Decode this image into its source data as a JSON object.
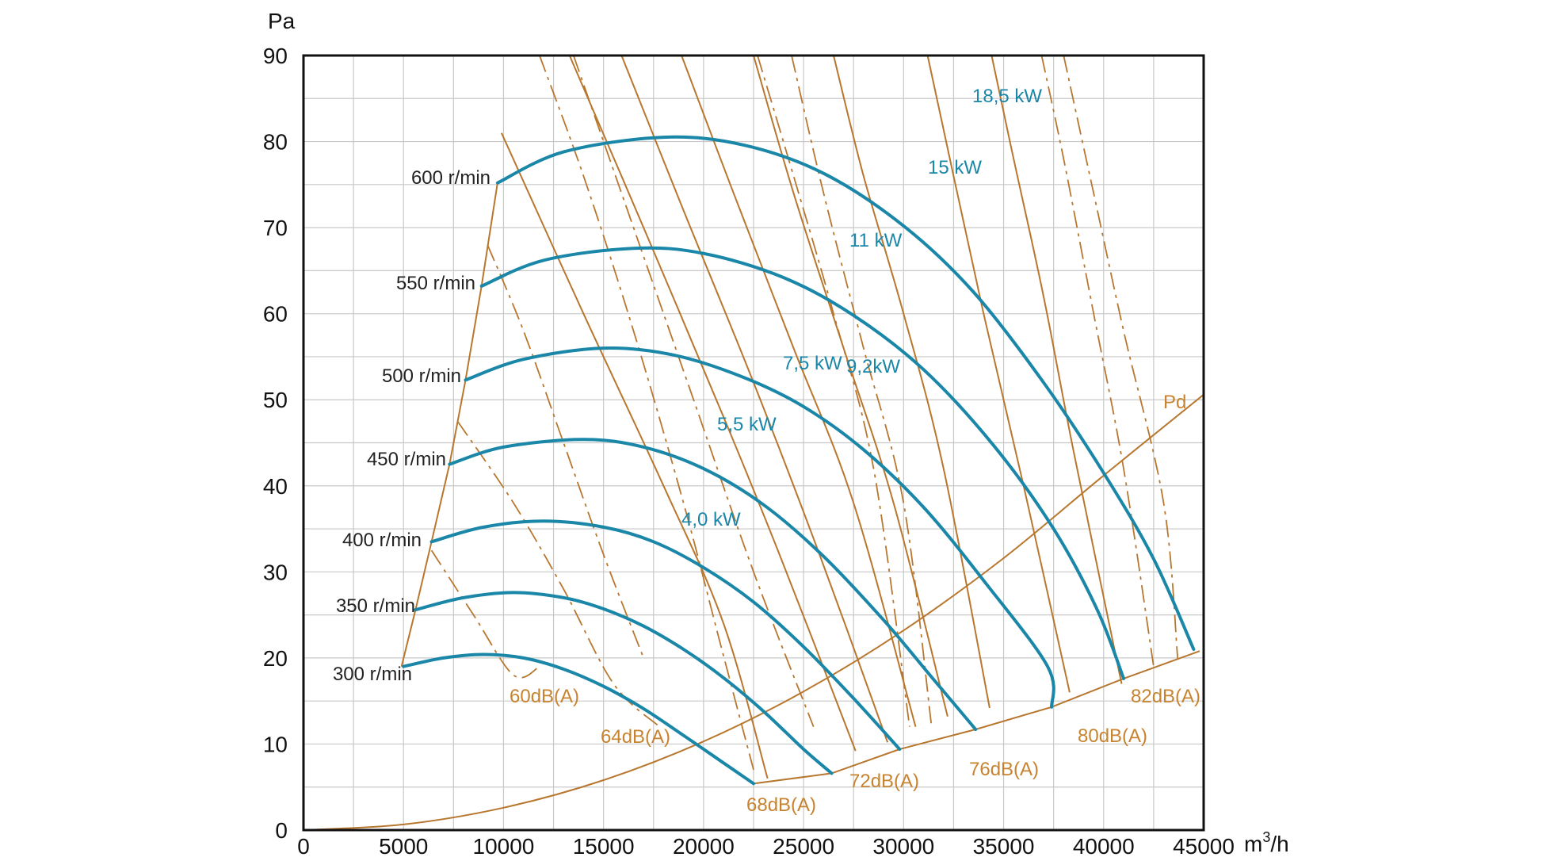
{
  "chart_data": {
    "type": "line",
    "title": "",
    "xlabel": "m³/h",
    "ylabel": "Pa",
    "xlim": [
      0,
      45000
    ],
    "ylim": [
      0,
      90
    ],
    "xticks": [
      0,
      5000,
      10000,
      15000,
      20000,
      25000,
      30000,
      35000,
      40000,
      45000
    ],
    "yticks": [
      0,
      10,
      20,
      30,
      40,
      50,
      60,
      70,
      80,
      90
    ],
    "grid": true,
    "colors": {
      "fan_curve": "#1a87a8",
      "power_line": "#b8772e",
      "noise_line": "#b8772e",
      "noise_label": "#c7832f",
      "grid": "#c8c8c8",
      "frame": "#111111"
    },
    "fan_curves": [
      {
        "name": "300 r/min",
        "points": [
          [
            5000,
            19
          ],
          [
            7000,
            20
          ],
          [
            9000,
            20.4
          ],
          [
            11000,
            20
          ],
          [
            13000,
            18.7
          ],
          [
            15000,
            16.7
          ],
          [
            17000,
            14.1
          ],
          [
            19000,
            11
          ],
          [
            21000,
            7.8
          ],
          [
            22500,
            5.4
          ]
        ]
      },
      {
        "name": "350 r/min",
        "points": [
          [
            5600,
            25.6
          ],
          [
            8000,
            27
          ],
          [
            10500,
            27.6
          ],
          [
            13000,
            27
          ],
          [
            15000,
            25.7
          ],
          [
            17000,
            23.7
          ],
          [
            19000,
            21
          ],
          [
            21000,
            17.7
          ],
          [
            23000,
            13.8
          ],
          [
            25000,
            9.4
          ],
          [
            26400,
            6.6
          ]
        ]
      },
      {
        "name": "400 r/min",
        "points": [
          [
            6400,
            33.5
          ],
          [
            9000,
            35.2
          ],
          [
            12000,
            35.9
          ],
          [
            15000,
            35.2
          ],
          [
            17500,
            33.5
          ],
          [
            20000,
            30.5
          ],
          [
            22500,
            26.5
          ],
          [
            25000,
            21.3
          ],
          [
            27500,
            15.3
          ],
          [
            29800,
            9.4
          ]
        ]
      },
      {
        "name": "450 r/min",
        "points": [
          [
            7300,
            42.5
          ],
          [
            10000,
            44.5
          ],
          [
            14000,
            45.4
          ],
          [
            17000,
            44.5
          ],
          [
            20000,
            42
          ],
          [
            23000,
            37.8
          ],
          [
            26000,
            31.8
          ],
          [
            29000,
            24.4
          ],
          [
            31500,
            17.5
          ],
          [
            33600,
            11.7
          ]
        ]
      },
      {
        "name": "500 r/min",
        "points": [
          [
            8100,
            52.3
          ],
          [
            11000,
            54.7
          ],
          [
            15000,
            56
          ],
          [
            18500,
            55.2
          ],
          [
            22000,
            52.6
          ],
          [
            25000,
            49.2
          ],
          [
            28000,
            44.2
          ],
          [
            31000,
            37.5
          ],
          [
            34000,
            29
          ],
          [
            37200,
            19
          ],
          [
            37400,
            14.3
          ]
        ]
      },
      {
        "name": "550 r/min",
        "points": [
          [
            8900,
            63.2
          ],
          [
            12000,
            66.2
          ],
          [
            16500,
            67.6
          ],
          [
            20000,
            67
          ],
          [
            24000,
            64.2
          ],
          [
            27500,
            59.8
          ],
          [
            31000,
            53.5
          ],
          [
            34500,
            44.7
          ],
          [
            37500,
            35
          ],
          [
            39700,
            25.5
          ],
          [
            41000,
            17.6
          ]
        ]
      },
      {
        "name": "600 r/min",
        "points": [
          [
            9700,
            75.2
          ],
          [
            13000,
            78.8
          ],
          [
            18000,
            80.5
          ],
          [
            22000,
            79.6
          ],
          [
            26000,
            76.3
          ],
          [
            30000,
            70.2
          ],
          [
            33500,
            62.5
          ],
          [
            37000,
            52
          ],
          [
            40000,
            41.5
          ],
          [
            42500,
            31.5
          ],
          [
            44500,
            21
          ]
        ]
      }
    ],
    "rpm_limit_line": [
      [
        4900,
        19
      ],
      [
        5600,
        25.6
      ],
      [
        6400,
        33.5
      ],
      [
        7300,
        42.5
      ],
      [
        8100,
        52.3
      ],
      [
        8900,
        63.2
      ],
      [
        9700,
        75.2
      ]
    ],
    "minimum_line": [
      [
        22500,
        5.4
      ],
      [
        26400,
        6.6
      ],
      [
        29800,
        9.4
      ],
      [
        33600,
        11.7
      ],
      [
        37400,
        14.3
      ],
      [
        41000,
        17.6
      ],
      [
        44800,
        20.8
      ]
    ],
    "pd_curve": {
      "name": "Pd",
      "points": [
        [
          0,
          0
        ],
        [
          5000,
          0.65
        ],
        [
          10000,
          2.6
        ],
        [
          15000,
          5.8
        ],
        [
          20000,
          10.3
        ],
        [
          25000,
          16.1
        ],
        [
          30000,
          23.2
        ],
        [
          35000,
          31.6
        ],
        [
          40000,
          41.2
        ],
        [
          45000,
          50.6
        ]
      ]
    },
    "power_lines": [
      {
        "name": "4,0 kW",
        "points": [
          [
            9900,
            81
          ],
          [
            14000,
            60
          ],
          [
            18000,
            40
          ],
          [
            21000,
            24
          ],
          [
            23200,
            6
          ]
        ]
      },
      {
        "name": "",
        "points": [
          [
            13300,
            90
          ],
          [
            17000,
            70
          ],
          [
            21000,
            48
          ],
          [
            23800,
            32
          ],
          [
            27600,
            9.2
          ]
        ]
      },
      {
        "name": "5,5 kW",
        "points": [
          [
            15900,
            90
          ],
          [
            19000,
            72
          ],
          [
            22500,
            52
          ],
          [
            25800,
            32
          ],
          [
            29200,
            10.2
          ]
        ]
      },
      {
        "name": "7,5 kW",
        "points": [
          [
            18900,
            90
          ],
          [
            21500,
            74
          ],
          [
            24500,
            56
          ],
          [
            27500,
            38
          ],
          [
            30600,
            12
          ]
        ]
      },
      {
        "name": "9,2 kW",
        "points": [
          [
            22500,
            90
          ],
          [
            24500,
            74
          ],
          [
            27000,
            56
          ],
          [
            29500,
            38
          ],
          [
            32200,
            13.2
          ]
        ]
      },
      {
        "name": "11 kW",
        "points": [
          [
            26500,
            90
          ],
          [
            28000,
            76
          ],
          [
            30000,
            60
          ],
          [
            32000,
            42
          ],
          [
            34300,
            14.2
          ]
        ]
      },
      {
        "name": "15 kW",
        "points": [
          [
            31200,
            90
          ],
          [
            32500,
            76
          ],
          [
            34000,
            60
          ],
          [
            36000,
            40
          ],
          [
            38300,
            16
          ]
        ]
      },
      {
        "name": "18,5 kW",
        "points": [
          [
            34400,
            90
          ],
          [
            35500,
            78
          ],
          [
            37000,
            62
          ],
          [
            38500,
            44
          ],
          [
            40900,
            17
          ]
        ]
      }
    ],
    "noise_lines": [
      {
        "name": "60dB(A)",
        "points": [
          [
            9200,
            68
          ],
          [
            11000,
            58
          ],
          [
            13000,
            45
          ],
          [
            15000,
            32
          ],
          [
            17000,
            20
          ]
        ]
      },
      {
        "name": "",
        "points": [
          [
            7700,
            47.5
          ],
          [
            10500,
            38
          ],
          [
            13000,
            28
          ],
          [
            15500,
            17
          ],
          [
            17800,
            12
          ]
        ]
      },
      {
        "name": "",
        "points": [
          [
            6400,
            32.5
          ],
          [
            8500,
            25
          ],
          [
            10500,
            18
          ],
          [
            11800,
            19
          ]
        ]
      },
      {
        "name": "64dB(A)",
        "points": [
          [
            11800,
            90
          ],
          [
            14000,
            76
          ],
          [
            16500,
            58
          ],
          [
            19000,
            38
          ],
          [
            20800,
            22
          ],
          [
            22500,
            7
          ]
        ]
      },
      {
        "name": "68dB(A)",
        "points": [
          [
            13500,
            90
          ],
          [
            16500,
            70
          ],
          [
            19500,
            50
          ],
          [
            22500,
            30
          ],
          [
            25500,
            12
          ]
        ]
      },
      {
        "name": "72dB(A)",
        "points": [
          [
            22700,
            90
          ],
          [
            24500,
            76
          ],
          [
            26500,
            60
          ],
          [
            28500,
            42
          ],
          [
            30300,
            12
          ]
        ]
      },
      {
        "name": "76dB(A)",
        "points": [
          [
            24400,
            90
          ],
          [
            26000,
            74
          ],
          [
            28000,
            56
          ],
          [
            30000,
            38
          ],
          [
            31400,
            12
          ]
        ]
      },
      {
        "name": "80dB(A)",
        "points": [
          [
            36900,
            90
          ],
          [
            38000,
            78
          ],
          [
            39500,
            60
          ],
          [
            41000,
            42
          ],
          [
            42500,
            19
          ]
        ]
      },
      {
        "name": "82dB(A)",
        "points": [
          [
            38000,
            90
          ],
          [
            39500,
            74
          ],
          [
            41000,
            58
          ],
          [
            43000,
            38
          ],
          [
            43700,
            20
          ]
        ]
      }
    ],
    "labels": {
      "rpm": [
        "300 r/min",
        "350 r/min",
        "400 r/min",
        "450 r/min",
        "500 r/min",
        "550 r/min",
        "600 r/min"
      ],
      "power": [
        "4,0 kW",
        "5,5 kW",
        "7,5 kW",
        "9,2kW",
        "11 kW",
        "15 kW",
        "18,5 kW"
      ],
      "noise": [
        "60dB(A)",
        "64dB(A)",
        "68dB(A)",
        "72dB(A)",
        "76dB(A)",
        "80dB(A)",
        "82dB(A)"
      ],
      "pd": "Pd",
      "xunit": "m³/h",
      "yunit": "Pa"
    }
  }
}
